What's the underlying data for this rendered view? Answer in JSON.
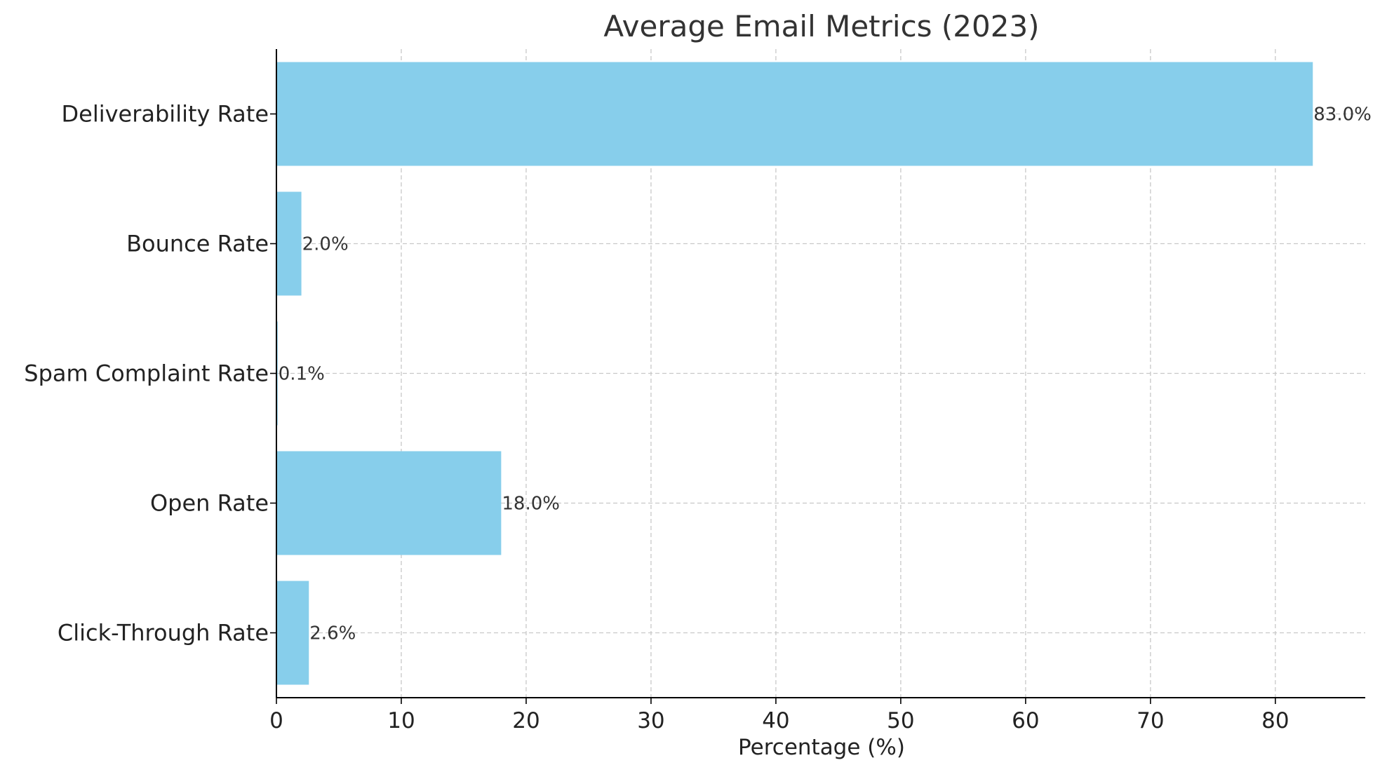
{
  "chart_data": {
    "type": "bar",
    "orientation": "horizontal",
    "title": "Average Email Metrics (2023)",
    "xlabel": "Percentage (%)",
    "ylabel": "",
    "categories": [
      "Deliverability Rate",
      "Bounce Rate",
      "Spam Complaint Rate",
      "Open Rate",
      "Click-Through Rate"
    ],
    "values": [
      83.0,
      2.0,
      0.1,
      18.0,
      2.6
    ],
    "value_labels": [
      "83.0%",
      "2.0%",
      "0.1%",
      "18.0%",
      "2.6%"
    ],
    "xlim": [
      0,
      87.2
    ],
    "xticks": [
      0,
      10,
      20,
      30,
      40,
      50,
      60,
      70,
      80
    ],
    "xtick_labels": [
      "0",
      "10",
      "20",
      "30",
      "40",
      "50",
      "60",
      "70",
      "80"
    ],
    "grid": true,
    "grid_style": "dashed",
    "bar_color": "#87CEEB",
    "grid_color": "#c8c8c8",
    "axis_color": "#000000"
  }
}
